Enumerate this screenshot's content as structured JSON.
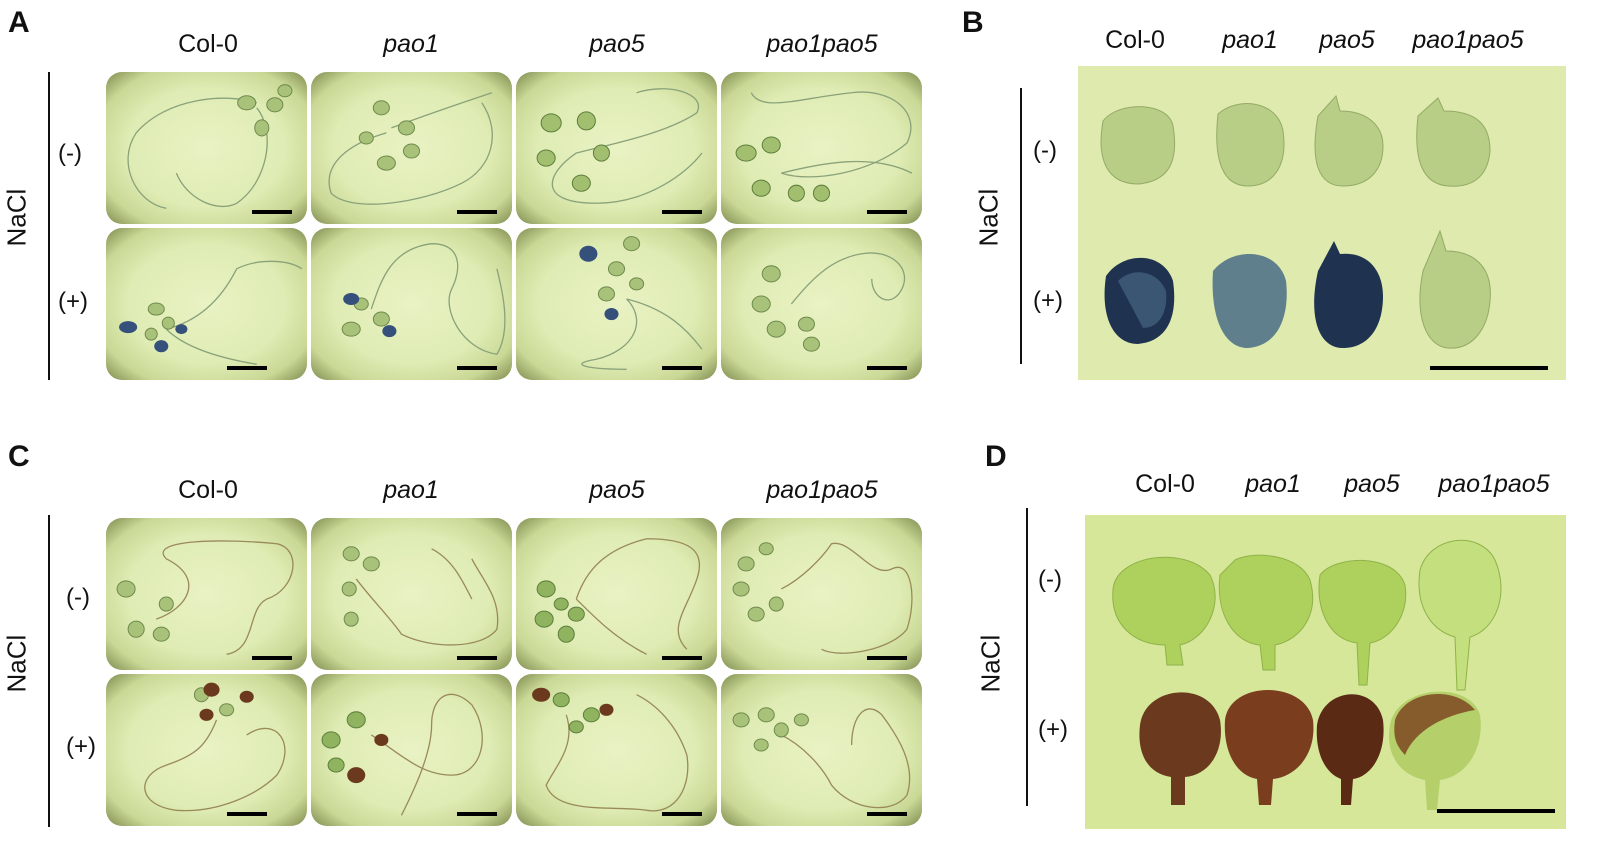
{
  "panels": {
    "A": {
      "letter": "A",
      "columns": [
        "Col-0",
        "pao1",
        "pao5",
        "pao1pao5"
      ],
      "treatment": "NaCl",
      "rows": [
        "(-)",
        "(+)"
      ]
    },
    "B": {
      "letter": "B",
      "columns": [
        "Col-0",
        "pao1",
        "pao5",
        "pao1pao5"
      ],
      "treatment": "NaCl",
      "rows": [
        "(-)",
        "(+)"
      ]
    },
    "C": {
      "letter": "C",
      "columns": [
        "Col-0",
        "pao1",
        "pao5",
        "pao1pao5"
      ],
      "treatment": "NaCl",
      "rows": [
        "(-)",
        "(+)"
      ]
    },
    "D": {
      "letter": "D",
      "columns": [
        "Col-0",
        "pao1",
        "pao5",
        "pao1pao5"
      ],
      "treatment": "NaCl",
      "rows": [
        "(-)",
        "(+)"
      ]
    }
  },
  "colors": {
    "background_agar": "#dfecb4",
    "leaf_green": "#9fbf6a",
    "gus_blue": "#2c4a6e",
    "dab_brown": "#6b3a1e"
  }
}
